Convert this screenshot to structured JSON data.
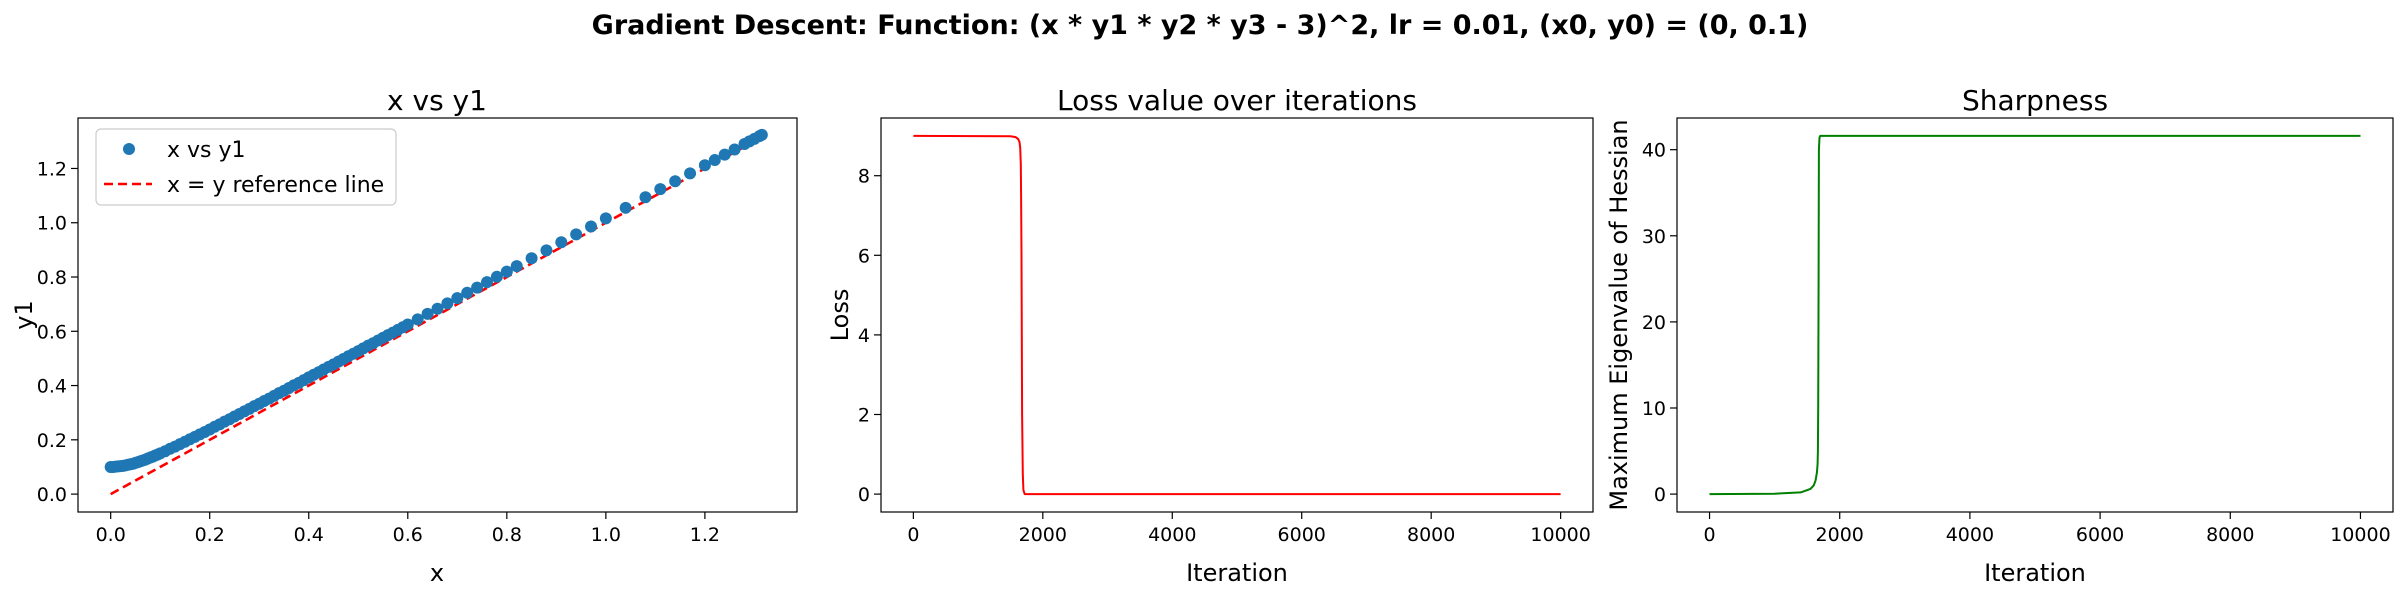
{
  "figure": {
    "suptitle": "Gradient Descent: Function: (x * y1 * y2 * y3 - 3)^2, lr = 0.01, (x0, y0) = (0, 0.1)"
  },
  "colors": {
    "scatter": "#1f77b4",
    "reference": "#ff0000",
    "loss": "#ff0000",
    "sharpness": "#008000"
  },
  "chart_data": [
    {
      "type": "scatter",
      "title": "x vs y1",
      "xlabel": "x",
      "ylabel": "y1",
      "xlim": [
        -0.066,
        1.386
      ],
      "ylim": [
        -0.066,
        1.386
      ],
      "xticks": [
        "0.0",
        "0.2",
        "0.4",
        "0.6",
        "0.8",
        "1.0",
        "1.2"
      ],
      "yticks": [
        "0.0",
        "0.2",
        "0.4",
        "0.6",
        "0.8",
        "1.0",
        "1.2"
      ],
      "tick_values": [
        0,
        0.2,
        0.4,
        0.6,
        0.8,
        1.0,
        1.2
      ],
      "legend": {
        "position": "top-left",
        "entries": [
          "x vs y1",
          "x = y reference line"
        ]
      },
      "series": [
        {
          "name": "x vs y1",
          "kind": "scatter",
          "x": [
            0.0,
            0.005,
            0.01,
            0.015,
            0.02,
            0.025,
            0.03,
            0.035,
            0.04,
            0.045,
            0.05,
            0.055,
            0.06,
            0.065,
            0.07,
            0.075,
            0.08,
            0.085,
            0.09,
            0.095,
            0.1,
            0.11,
            0.12,
            0.13,
            0.14,
            0.15,
            0.16,
            0.17,
            0.18,
            0.19,
            0.2,
            0.21,
            0.22,
            0.23,
            0.24,
            0.25,
            0.26,
            0.27,
            0.28,
            0.29,
            0.3,
            0.31,
            0.32,
            0.33,
            0.34,
            0.35,
            0.36,
            0.37,
            0.38,
            0.39,
            0.4,
            0.41,
            0.42,
            0.43,
            0.44,
            0.45,
            0.46,
            0.47,
            0.48,
            0.49,
            0.5,
            0.51,
            0.52,
            0.53,
            0.54,
            0.55,
            0.56,
            0.57,
            0.58,
            0.59,
            0.6,
            0.62,
            0.64,
            0.66,
            0.68,
            0.7,
            0.72,
            0.74,
            0.76,
            0.78,
            0.8,
            0.82,
            0.85,
            0.88,
            0.91,
            0.94,
            0.97,
            1.0,
            1.04,
            1.08,
            1.11,
            1.14,
            1.17,
            1.2,
            1.22,
            1.24,
            1.26,
            1.28,
            1.29,
            1.3,
            1.31,
            1.315
          ],
          "y": [
            0.1,
            0.1,
            0.101,
            0.102,
            0.103,
            0.104,
            0.106,
            0.108,
            0.11,
            0.112,
            0.115,
            0.118,
            0.121,
            0.124,
            0.127,
            0.131,
            0.135,
            0.138,
            0.142,
            0.146,
            0.15,
            0.158,
            0.167,
            0.175,
            0.184,
            0.193,
            0.202,
            0.211,
            0.22,
            0.229,
            0.238,
            0.248,
            0.257,
            0.267,
            0.276,
            0.286,
            0.295,
            0.305,
            0.314,
            0.324,
            0.333,
            0.343,
            0.352,
            0.362,
            0.372,
            0.381,
            0.391,
            0.401,
            0.41,
            0.42,
            0.43,
            0.44,
            0.449,
            0.459,
            0.469,
            0.478,
            0.488,
            0.498,
            0.508,
            0.517,
            0.527,
            0.537,
            0.547,
            0.556,
            0.566,
            0.576,
            0.586,
            0.595,
            0.605,
            0.615,
            0.625,
            0.644,
            0.664,
            0.683,
            0.703,
            0.722,
            0.742,
            0.761,
            0.781,
            0.801,
            0.82,
            0.84,
            0.869,
            0.898,
            0.928,
            0.957,
            0.986,
            1.016,
            1.055,
            1.094,
            1.124,
            1.153,
            1.182,
            1.212,
            1.231,
            1.251,
            1.27,
            1.29,
            1.3,
            1.309,
            1.319,
            1.324
          ]
        },
        {
          "name": "x = y reference line",
          "kind": "line",
          "style": "dashed",
          "x": [
            0,
            1.32
          ],
          "y": [
            0,
            1.32
          ]
        }
      ]
    },
    {
      "type": "line",
      "title": "Loss value over iterations",
      "xlabel": "Iteration",
      "ylabel": "Loss",
      "xlim": [
        -500,
        10500
      ],
      "ylim": [
        -0.45,
        9.45
      ],
      "xticks": [
        "0",
        "2000",
        "4000",
        "6000",
        "8000",
        "10000"
      ],
      "xtick_values": [
        0,
        2000,
        4000,
        6000,
        8000,
        10000
      ],
      "yticks": [
        "0",
        "2",
        "4",
        "6",
        "8"
      ],
      "ytick_values": [
        0,
        2,
        4,
        6,
        8
      ],
      "series": [
        {
          "x": [
            0,
            1500,
            1580,
            1620,
            1640,
            1650,
            1660,
            1665,
            1670,
            1675,
            1680,
            1690,
            1700,
            1720,
            2000,
            10000
          ],
          "y": [
            9.0,
            8.99,
            8.97,
            8.92,
            8.85,
            8.7,
            8.3,
            7.5,
            6.0,
            4.0,
            2.0,
            0.5,
            0.1,
            0.0,
            0.0,
            0.0
          ]
        }
      ]
    },
    {
      "type": "line",
      "title": "Sharpness",
      "xlabel": "Iteration",
      "ylabel": "Maximum Eigenvalue of Hessian",
      "xlim": [
        -500,
        10500
      ],
      "ylim": [
        -2.08,
        43.68
      ],
      "xticks": [
        "0",
        "2000",
        "4000",
        "6000",
        "8000",
        "10000"
      ],
      "xtick_values": [
        0,
        2000,
        4000,
        6000,
        8000,
        10000
      ],
      "yticks": [
        "0",
        "10",
        "20",
        "30",
        "40"
      ],
      "ytick_values": [
        0,
        10,
        20,
        30,
        40
      ],
      "series": [
        {
          "x": [
            0,
            1000,
            1400,
            1550,
            1600,
            1630,
            1650,
            1660,
            1665,
            1670,
            1675,
            1680,
            1690,
            1700,
            2000,
            10000
          ],
          "y": [
            0.0,
            0.05,
            0.2,
            0.6,
            1.0,
            1.6,
            2.5,
            3.5,
            5.0,
            10.0,
            25.0,
            40.0,
            41.4,
            41.6,
            41.6,
            41.6
          ]
        }
      ]
    }
  ]
}
